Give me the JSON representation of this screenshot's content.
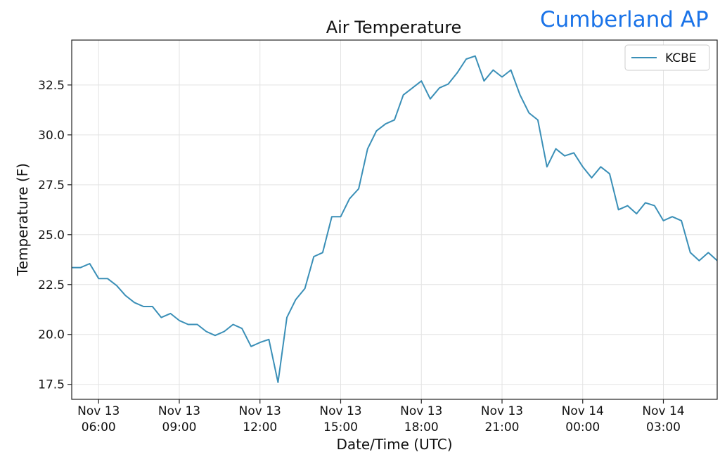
{
  "station_label": "Cumberland AP",
  "colors": {
    "series": "#3a8fb7",
    "station_label": "#1a73e8",
    "grid": "#e3e3e3"
  },
  "chart_data": {
    "type": "line",
    "title": "Air Temperature",
    "xlabel": "Date/Time (UTC)",
    "ylabel": "Temperature (F)",
    "x_unit": "hours since Nov 13 05:00 UTC",
    "xlim": [
      0,
      24
    ],
    "ylim": [
      16.75,
      34.75
    ],
    "grid": true,
    "legend_position": "top-right",
    "yticks": [
      17.5,
      20.0,
      22.5,
      25.0,
      27.5,
      30.0,
      32.5
    ],
    "ytick_labels": [
      "17.5",
      "20.0",
      "22.5",
      "25.0",
      "27.5",
      "30.0",
      "32.5"
    ],
    "xticks": [
      {
        "x": 1,
        "line1": "Nov 13",
        "line2": "06:00"
      },
      {
        "x": 4,
        "line1": "Nov 13",
        "line2": "09:00"
      },
      {
        "x": 7,
        "line1": "Nov 13",
        "line2": "12:00"
      },
      {
        "x": 10,
        "line1": "Nov 13",
        "line2": "15:00"
      },
      {
        "x": 13,
        "line1": "Nov 13",
        "line2": "18:00"
      },
      {
        "x": 16,
        "line1": "Nov 13",
        "line2": "21:00"
      },
      {
        "x": 19,
        "line1": "Nov 14",
        "line2": "00:00"
      },
      {
        "x": 22,
        "line1": "Nov 14",
        "line2": "03:00"
      }
    ],
    "series": [
      {
        "name": "KCBE",
        "x": [
          0,
          0.33,
          0.67,
          1.0,
          1.33,
          1.67,
          2.0,
          2.33,
          2.67,
          3.0,
          3.33,
          3.67,
          4.0,
          4.33,
          4.67,
          5.0,
          5.33,
          5.67,
          6.0,
          6.33,
          6.67,
          7.0,
          7.33,
          7.67,
          8.0,
          8.33,
          8.67,
          9.0,
          9.33,
          9.67,
          10.0,
          10.33,
          10.67,
          11.0,
          11.33,
          11.67,
          12.0,
          12.33,
          12.67,
          13.0,
          13.33,
          13.67,
          14.0,
          14.33,
          14.67,
          15.0,
          15.33,
          15.67,
          16.0,
          16.33,
          16.67,
          17.0,
          17.33,
          17.67,
          18.0,
          18.33,
          18.67,
          19.0,
          19.33,
          19.67,
          20.0,
          20.33,
          20.67,
          21.0,
          21.33,
          21.67,
          22.0,
          22.33,
          22.67,
          23.0,
          23.33,
          23.67,
          24.0
        ],
        "y": [
          23.35,
          23.35,
          23.55,
          22.8,
          22.8,
          22.45,
          21.95,
          21.6,
          21.4,
          21.4,
          20.85,
          21.05,
          20.7,
          20.5,
          20.5,
          20.15,
          19.95,
          20.15,
          20.5,
          20.3,
          19.4,
          19.6,
          19.75,
          17.6,
          20.85,
          21.75,
          22.3,
          23.9,
          24.1,
          25.9,
          25.9,
          26.8,
          27.3,
          29.3,
          30.2,
          30.55,
          30.75,
          32.0,
          32.35,
          32.7,
          31.8,
          32.35,
          32.55,
          33.1,
          33.8,
          33.95,
          32.7,
          33.25,
          32.9,
          33.25,
          32.0,
          31.1,
          30.75,
          28.4,
          29.3,
          28.95,
          29.1,
          28.4,
          27.85,
          28.4,
          28.05,
          26.25,
          26.45,
          26.05,
          26.6,
          26.45,
          25.7,
          25.9,
          25.7,
          24.1,
          23.7,
          24.1,
          23.7
        ]
      }
    ]
  }
}
